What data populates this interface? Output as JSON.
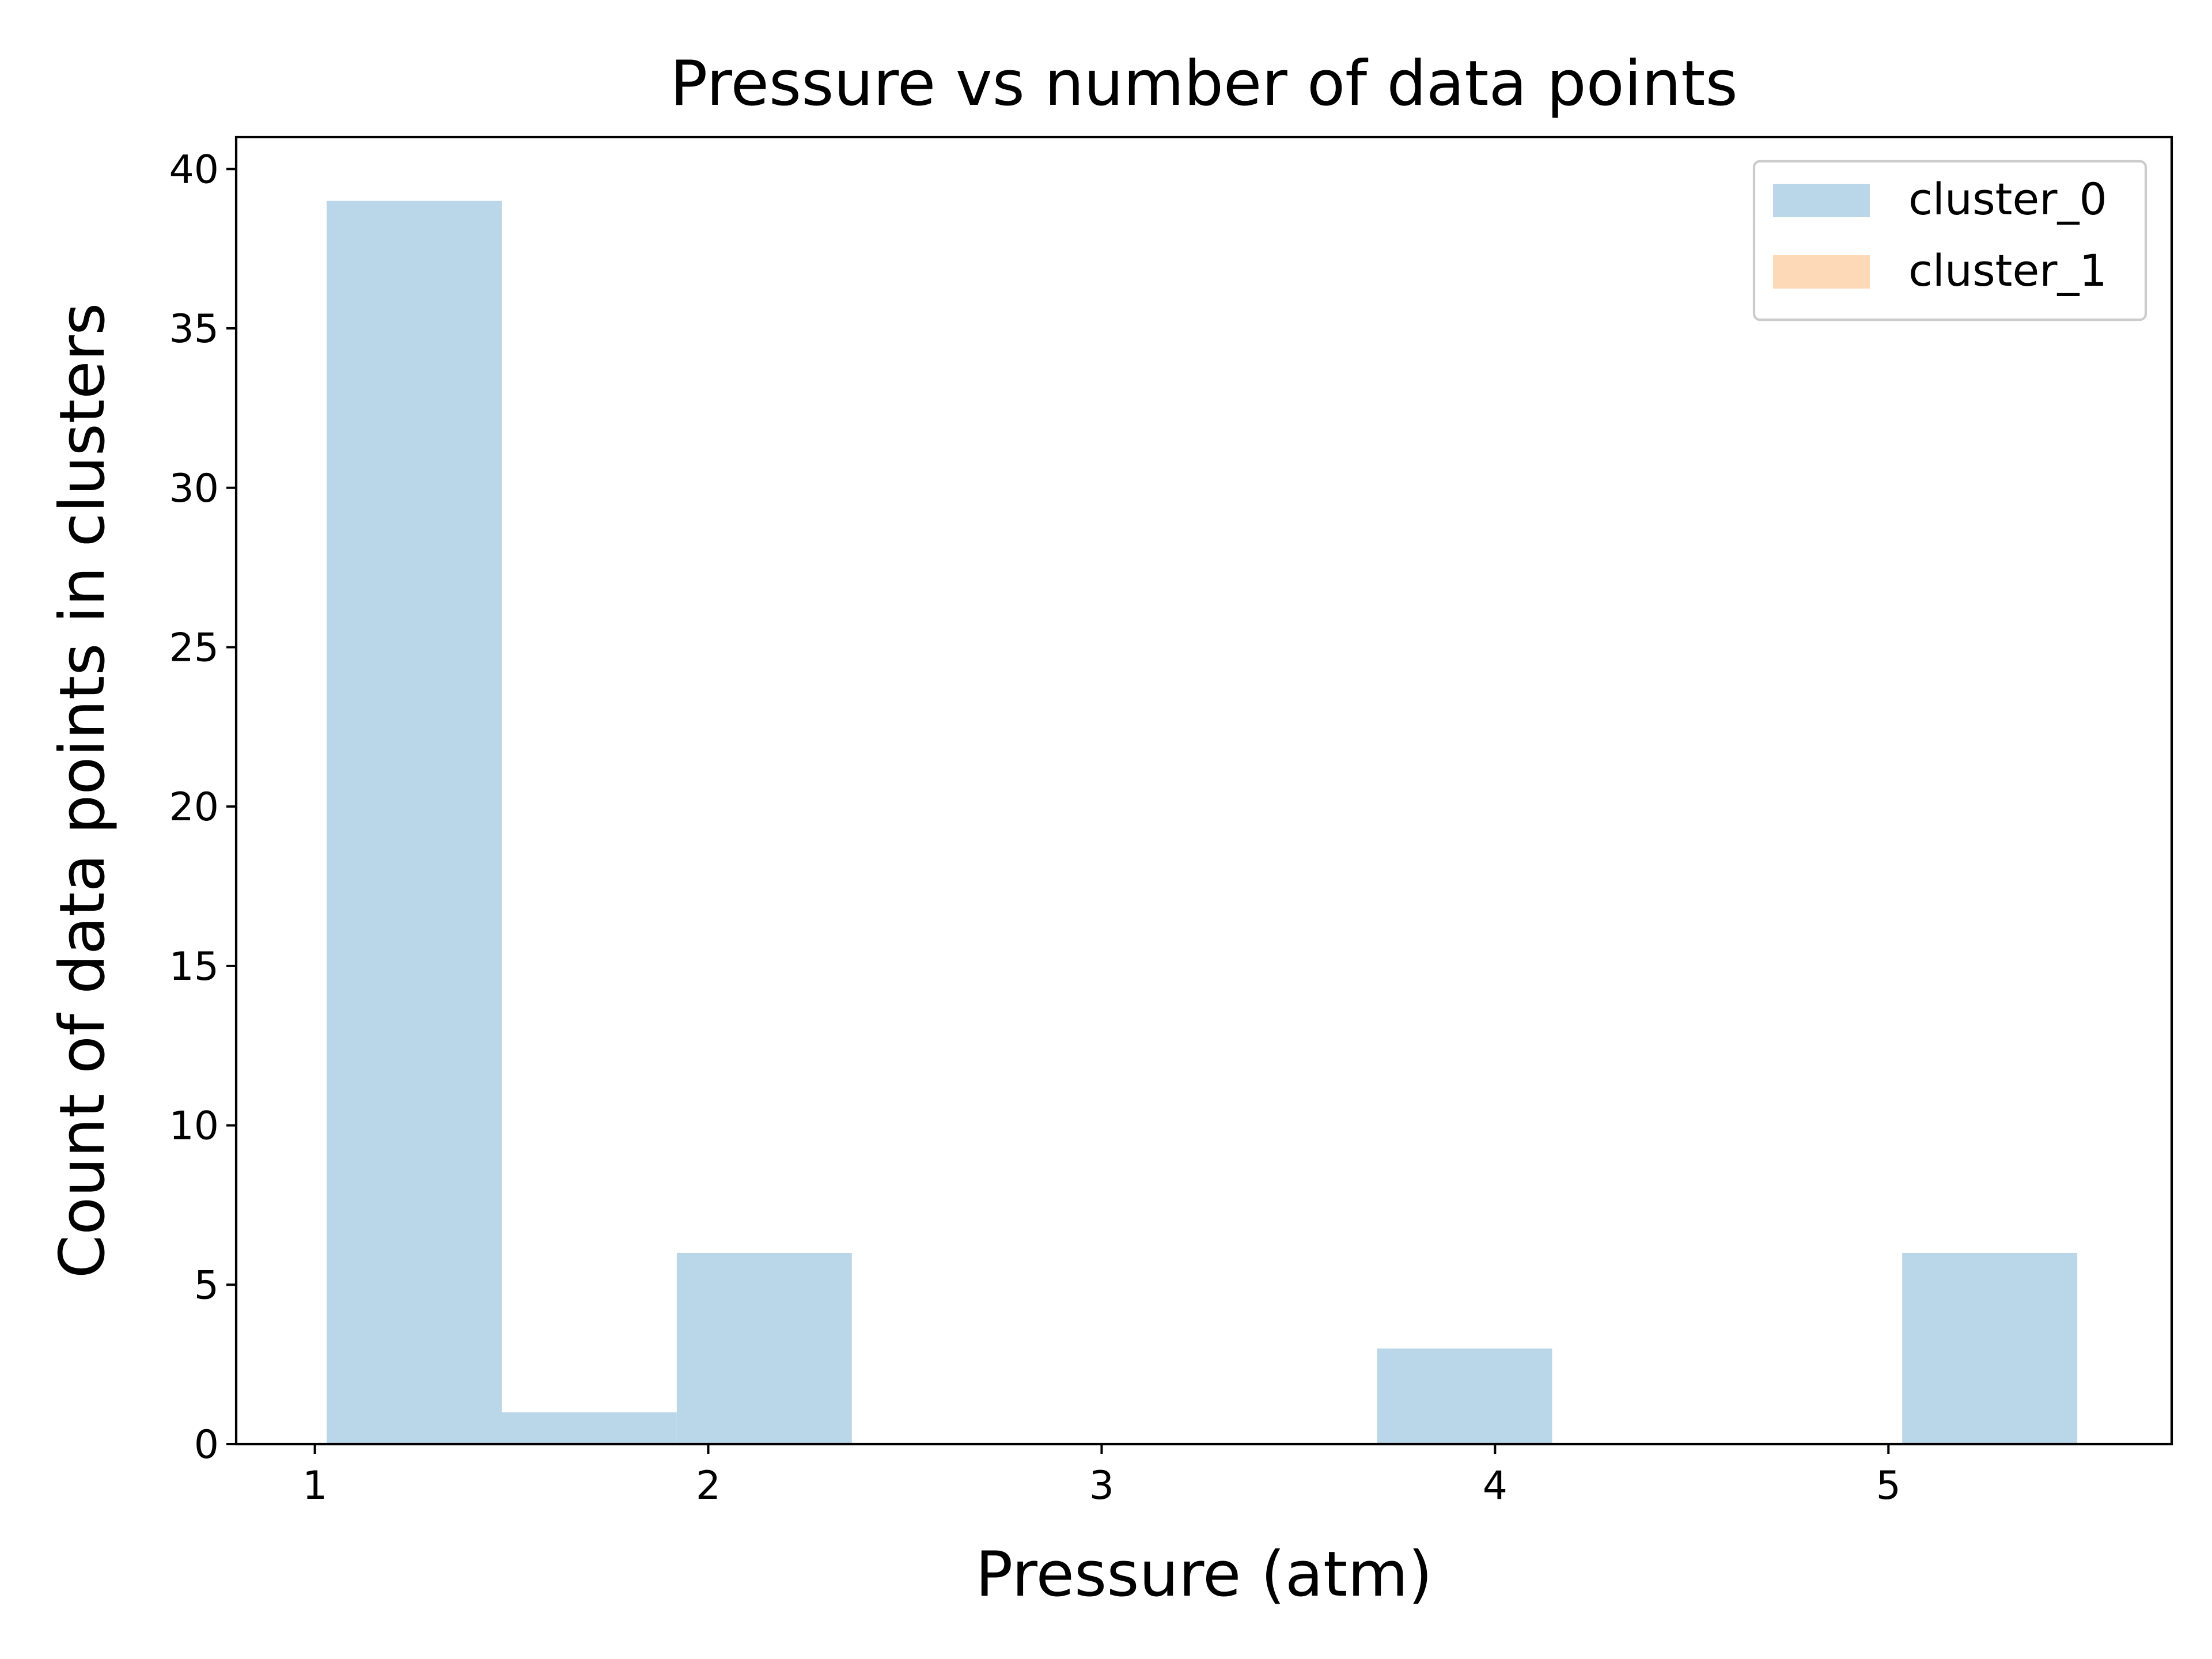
{
  "chart_data": {
    "type": "bar",
    "title": "Pressure vs number of data points",
    "xlabel": "Pressure (atm)",
    "ylabel": "Count of data points in clusters",
    "xlim": [
      0.8,
      5.72
    ],
    "ylim": [
      0,
      41
    ],
    "xticks": [
      1,
      2,
      3,
      4,
      5
    ],
    "yticks": [
      0,
      5,
      10,
      15,
      20,
      25,
      30,
      35,
      40
    ],
    "grid": false,
    "legend_position": "upper right",
    "series": [
      {
        "name": "cluster_0",
        "color": "#bad6e9",
        "bins": [
          {
            "x0": 1.03,
            "x1": 1.475,
            "value": 39
          },
          {
            "x0": 1.475,
            "x1": 1.92,
            "value": 1
          },
          {
            "x0": 1.92,
            "x1": 2.365,
            "value": 6
          },
          {
            "x0": 2.365,
            "x1": 2.81,
            "value": 0
          },
          {
            "x0": 2.81,
            "x1": 3.255,
            "value": 0
          },
          {
            "x0": 3.255,
            "x1": 3.7,
            "value": 0
          },
          {
            "x0": 3.7,
            "x1": 4.145,
            "value": 3
          },
          {
            "x0": 4.145,
            "x1": 4.59,
            "value": 0
          },
          {
            "x0": 4.59,
            "x1": 5.035,
            "value": 0
          },
          {
            "x0": 5.035,
            "x1": 5.48,
            "value": 6
          }
        ]
      },
      {
        "name": "cluster_1",
        "color": "#fed9b8",
        "bins": []
      }
    ]
  }
}
